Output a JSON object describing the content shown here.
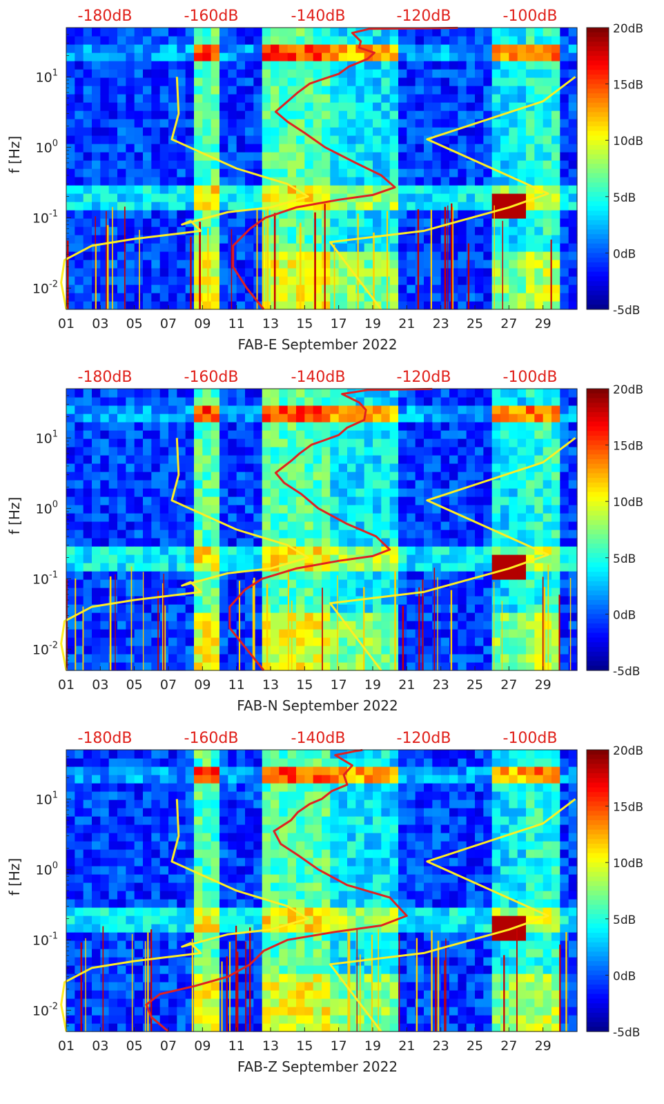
{
  "figure": {
    "db_scale_labels": [
      "-180dB",
      "-160dB",
      "-140dB",
      "-120dB",
      "-100dB"
    ],
    "colorbar_labels": [
      "20dB",
      "15dB",
      "10dB",
      "5dB",
      "0dB",
      "-5dB"
    ],
    "colors": {
      "model_curve": "#ffee22",
      "measured_curve": "#e02020",
      "db_scale_text": "#e0201a",
      "background_spectrogram": "#1030c0"
    }
  },
  "chart_data": [
    {
      "type": "heatmap",
      "xlabel": "FAB-E September 2022",
      "ylabel": "f [Hz]",
      "x_ticks": [
        "01",
        "03",
        "05",
        "07",
        "09",
        "11",
        "13",
        "15",
        "17",
        "19",
        "21",
        "23",
        "25",
        "27",
        "29"
      ],
      "y_ticks": [
        "10^1",
        "10^0",
        "10^-1",
        "10^-2"
      ],
      "ylim_hz": [
        0.005,
        50
      ],
      "log_y": true,
      "colorbar": {
        "min_db": -5,
        "max_db": 20,
        "colormap": "jet"
      },
      "top_axis_db": [
        -180,
        -160,
        -140,
        -120,
        -100
      ],
      "overlay_curves": [
        {
          "color": "yellow",
          "points_day_hz": [
            [
              1.0,
              0.005
            ],
            [
              0.7,
              0.012
            ],
            [
              0.9,
              0.025
            ],
            [
              2.5,
              0.04
            ],
            [
              5,
              0.05
            ],
            [
              8.9,
              0.065
            ],
            [
              8.3,
              0.09
            ],
            [
              7.8,
              0.08
            ],
            [
              10.5,
              0.12
            ],
            [
              13,
              0.14
            ],
            [
              15.2,
              0.2
            ],
            [
              14,
              0.3
            ],
            [
              11,
              0.5
            ],
            [
              7.2,
              1.3
            ],
            [
              7.6,
              3
            ],
            [
              7.5,
              10
            ]
          ]
        },
        {
          "color": "yellow",
          "points_day_hz": [
            [
              19.5,
              0.005
            ],
            [
              16.5,
              0.045
            ],
            [
              22,
              0.065
            ],
            [
              27,
              0.14
            ],
            [
              29.3,
              0.22
            ],
            [
              22.2,
              1.3
            ],
            [
              29,
              4.5
            ],
            [
              30.9,
              10
            ]
          ]
        },
        {
          "color": "red",
          "points_day_hz": [
            [
              12.6,
              0.005
            ],
            [
              11.6,
              0.01
            ],
            [
              10.8,
              0.02
            ],
            [
              10.8,
              0.04
            ],
            [
              11.8,
              0.07
            ],
            [
              12.7,
              0.1
            ],
            [
              14.5,
              0.14
            ],
            [
              17,
              0.18
            ],
            [
              19,
              0.21
            ],
            [
              20.3,
              0.27
            ],
            [
              19.5,
              0.4
            ],
            [
              18,
              0.6
            ],
            [
              16.2,
              1.0
            ],
            [
              15,
              1.6
            ],
            [
              14,
              2.3
            ],
            [
              13.3,
              3.2
            ],
            [
              14.1,
              4.7
            ],
            [
              14.6,
              6
            ],
            [
              15.3,
              8
            ],
            [
              15.9,
              9
            ],
            [
              17,
              11
            ],
            [
              17.6,
              14
            ],
            [
              18.7,
              18
            ],
            [
              19.1,
              22
            ],
            [
              18.2,
              26
            ],
            [
              18.3,
              32
            ],
            [
              17.8,
              42
            ],
            [
              18.8,
              48
            ],
            [
              24,
              49.5
            ]
          ]
        }
      ]
    },
    {
      "type": "heatmap",
      "xlabel": "FAB-N September 2022",
      "ylabel": "f [Hz]",
      "x_ticks": [
        "01",
        "03",
        "05",
        "07",
        "09",
        "11",
        "13",
        "15",
        "17",
        "19",
        "21",
        "23",
        "25",
        "27",
        "29"
      ],
      "y_ticks": [
        "10^1",
        "10^0",
        "10^-1",
        "10^-2"
      ],
      "ylim_hz": [
        0.005,
        50
      ],
      "log_y": true,
      "colorbar": {
        "min_db": -5,
        "max_db": 20,
        "colormap": "jet"
      },
      "top_axis_db": [
        -180,
        -160,
        -140,
        -120,
        -100
      ],
      "overlay_curves": [
        {
          "color": "yellow",
          "points_day_hz": [
            [
              1.0,
              0.005
            ],
            [
              0.7,
              0.012
            ],
            [
              0.9,
              0.025
            ],
            [
              2.5,
              0.04
            ],
            [
              5,
              0.05
            ],
            [
              8.9,
              0.065
            ],
            [
              8.3,
              0.09
            ],
            [
              7.8,
              0.08
            ],
            [
              10.5,
              0.12
            ],
            [
              13,
              0.14
            ],
            [
              15.2,
              0.2
            ],
            [
              14,
              0.3
            ],
            [
              11,
              0.5
            ],
            [
              7.2,
              1.3
            ],
            [
              7.6,
              3
            ],
            [
              7.5,
              10
            ]
          ]
        },
        {
          "color": "yellow",
          "points_day_hz": [
            [
              19.5,
              0.005
            ],
            [
              16.5,
              0.045
            ],
            [
              22,
              0.065
            ],
            [
              27,
              0.14
            ],
            [
              29.3,
              0.22
            ],
            [
              22.2,
              1.3
            ],
            [
              29,
              4.5
            ],
            [
              30.9,
              10
            ]
          ]
        },
        {
          "color": "red",
          "points_day_hz": [
            [
              12.6,
              0.005
            ],
            [
              11.6,
              0.01
            ],
            [
              10.6,
              0.02
            ],
            [
              10.6,
              0.04
            ],
            [
              11.5,
              0.07
            ],
            [
              12.5,
              0.1
            ],
            [
              14.5,
              0.14
            ],
            [
              17,
              0.18
            ],
            [
              19,
              0.21
            ],
            [
              20,
              0.26
            ],
            [
              19.2,
              0.4
            ],
            [
              17.5,
              0.6
            ],
            [
              15.8,
              1.0
            ],
            [
              14.8,
              1.6
            ],
            [
              13.8,
              2.3
            ],
            [
              13.3,
              3.2
            ],
            [
              14.2,
              4.7
            ],
            [
              14.7,
              6
            ],
            [
              15.4,
              8
            ],
            [
              16,
              9
            ],
            [
              17,
              11
            ],
            [
              17.5,
              14
            ],
            [
              18.5,
              18
            ],
            [
              18.6,
              25
            ],
            [
              18.2,
              32
            ],
            [
              17.2,
              42
            ],
            [
              18.7,
              48
            ],
            [
              22.5,
              49.5
            ]
          ]
        }
      ]
    },
    {
      "type": "heatmap",
      "xlabel": "FAB-Z September 2022",
      "ylabel": "f [Hz]",
      "x_ticks": [
        "01",
        "03",
        "05",
        "07",
        "09",
        "11",
        "13",
        "15",
        "17",
        "19",
        "21",
        "23",
        "25",
        "27",
        "29"
      ],
      "y_ticks": [
        "10^1",
        "10^0",
        "10^-1",
        "10^-2"
      ],
      "ylim_hz": [
        0.005,
        50
      ],
      "log_y": true,
      "colorbar": {
        "min_db": -5,
        "max_db": 20,
        "colormap": "jet"
      },
      "top_axis_db": [
        -180,
        -160,
        -140,
        -120,
        -100
      ],
      "overlay_curves": [
        {
          "color": "yellow",
          "points_day_hz": [
            [
              1.0,
              0.005
            ],
            [
              0.7,
              0.012
            ],
            [
              0.9,
              0.025
            ],
            [
              2.5,
              0.04
            ],
            [
              5,
              0.05
            ],
            [
              8.9,
              0.065
            ],
            [
              8.3,
              0.09
            ],
            [
              7.8,
              0.08
            ],
            [
              10.5,
              0.12
            ],
            [
              13,
              0.14
            ],
            [
              15.2,
              0.2
            ],
            [
              14,
              0.3
            ],
            [
              11,
              0.5
            ],
            [
              7.2,
              1.3
            ],
            [
              7.6,
              3
            ],
            [
              7.5,
              10
            ]
          ]
        },
        {
          "color": "yellow",
          "points_day_hz": [
            [
              19.5,
              0.005
            ],
            [
              16.5,
              0.045
            ],
            [
              22,
              0.065
            ],
            [
              27,
              0.14
            ],
            [
              29.3,
              0.22
            ],
            [
              22.2,
              1.3
            ],
            [
              29,
              4.5
            ],
            [
              30.9,
              10
            ]
          ]
        },
        {
          "color": "red",
          "points_day_hz": [
            [
              7.0,
              0.005
            ],
            [
              6.0,
              0.008
            ],
            [
              5.7,
              0.012
            ],
            [
              6.5,
              0.017
            ],
            [
              8.5,
              0.022
            ],
            [
              10.5,
              0.03
            ],
            [
              11.8,
              0.045
            ],
            [
              12.6,
              0.07
            ],
            [
              14,
              0.1
            ],
            [
              16.8,
              0.13
            ],
            [
              19.5,
              0.16
            ],
            [
              21,
              0.22
            ],
            [
              20,
              0.4
            ],
            [
              17.5,
              0.6
            ],
            [
              15.8,
              1.0
            ],
            [
              14.6,
              1.6
            ],
            [
              13.6,
              2.3
            ],
            [
              13.2,
              3.5
            ],
            [
              14.2,
              5
            ],
            [
              14.6,
              6.5
            ],
            [
              15.3,
              8.5
            ],
            [
              16,
              10
            ],
            [
              16.6,
              13
            ],
            [
              17.5,
              16
            ],
            [
              17.3,
              22
            ],
            [
              17.8,
              30
            ],
            [
              16.8,
              42
            ],
            [
              18,
              48
            ],
            [
              18.4,
              49.5
            ]
          ]
        }
      ]
    }
  ]
}
